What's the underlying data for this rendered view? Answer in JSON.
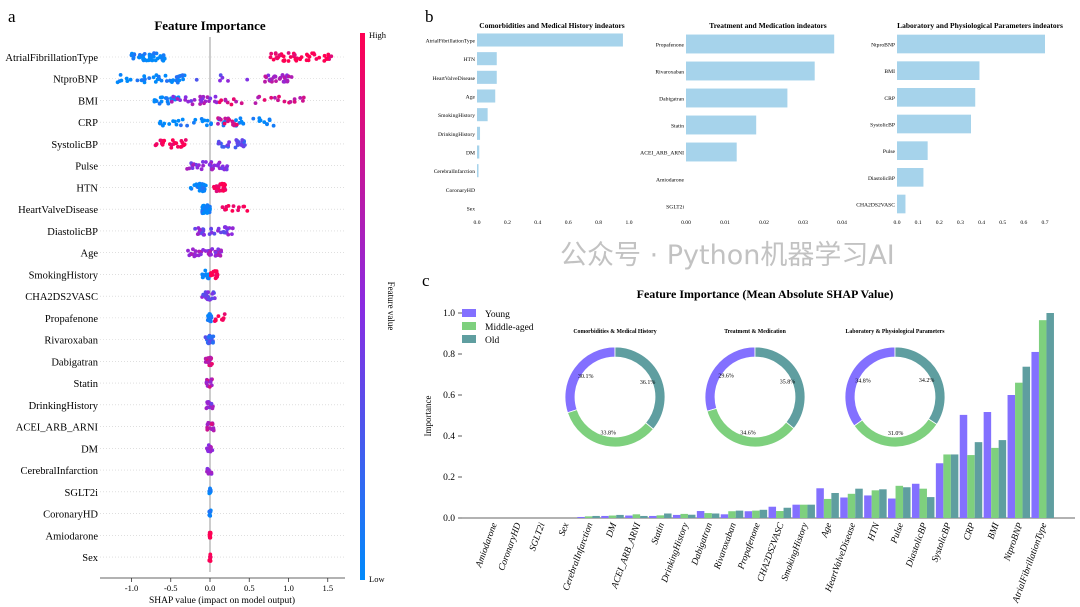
{
  "panel_labels": {
    "a": "a",
    "b": "b",
    "c": "c"
  },
  "watermark": "公众号 · Python机器学习AI",
  "chart_data": [
    {
      "type": "scatter",
      "subtype": "shap-beeswarm",
      "title": "Feature Importance",
      "xlabel": "SHAP value (impact on model output)",
      "xlim": [
        -1.4,
        1.65
      ],
      "xticks": [
        "-1.0",
        "-0.5",
        "0.0",
        "0.5",
        "1.0",
        "1.5"
      ],
      "colorbar": {
        "label": "Feature value",
        "high": "High",
        "low": "Low",
        "low_color": "#008afb",
        "high_color": "#ff0052"
      },
      "features": [
        {
          "name": "AtrialFibrillationType",
          "clusters": [
            [
              -1.0,
              -0.55,
              0,
              45
            ],
            [
              0.75,
              1.55,
              1,
              45
            ]
          ]
        },
        {
          "name": "NtproBNP",
          "clusters": [
            [
              -1.25,
              -0.3,
              0,
              40
            ],
            [
              -0.2,
              0.5,
              0.4,
              6
            ],
            [
              0.7,
              1.05,
              0.6,
              30
            ]
          ]
        },
        {
          "name": "BMI",
          "clusters": [
            [
              -0.75,
              -0.4,
              0,
              20
            ],
            [
              -0.5,
              0.1,
              0.55,
              25
            ],
            [
              0.1,
              1.2,
              0.8,
              25
            ]
          ]
        },
        {
          "name": "CRP",
          "clusters": [
            [
              -0.65,
              0.85,
              0,
              45
            ],
            [
              0.1,
              0.35,
              0.8,
              15
            ]
          ]
        },
        {
          "name": "SystolicBP",
          "clusters": [
            [
              -0.7,
              -0.3,
              1,
              25
            ],
            [
              0.1,
              0.45,
              0.3,
              30
            ]
          ]
        },
        {
          "name": "Pulse",
          "clusters": [
            [
              -0.3,
              0.3,
              0.5,
              35
            ]
          ]
        },
        {
          "name": "HTN",
          "clusters": [
            [
              -0.25,
              -0.05,
              0,
              25
            ],
            [
              0.05,
              0.2,
              1,
              25
            ]
          ]
        },
        {
          "name": "HeartValveDisease",
          "clusters": [
            [
              -0.1,
              0,
              0,
              35
            ],
            [
              0.15,
              0.5,
              1,
              12
            ]
          ]
        },
        {
          "name": "DiastolicBP",
          "clusters": [
            [
              -0.25,
              0.3,
              0.45,
              35
            ]
          ]
        },
        {
          "name": "Age",
          "clusters": [
            [
              -0.28,
              0.15,
              0.55,
              40
            ]
          ]
        },
        {
          "name": "SmokingHistory",
          "clusters": [
            [
              -0.1,
              0,
              0,
              15
            ],
            [
              0,
              0.1,
              1,
              15
            ]
          ]
        },
        {
          "name": "CHA2DS2VASC",
          "clusters": [
            [
              -0.12,
              0.08,
              0.4,
              20
            ]
          ]
        },
        {
          "name": "Propafenone",
          "clusters": [
            [
              -0.03,
              0.02,
              0,
              15
            ],
            [
              0.05,
              0.2,
              1,
              10
            ]
          ]
        },
        {
          "name": "Rivaroxaban",
          "clusters": [
            [
              -0.06,
              0.05,
              0.2,
              20
            ]
          ]
        },
        {
          "name": "Dabigatran",
          "clusters": [
            [
              -0.07,
              0.03,
              0.8,
              20
            ]
          ]
        },
        {
          "name": "Statin",
          "clusters": [
            [
              -0.05,
              0.03,
              0.7,
              15
            ]
          ]
        },
        {
          "name": "DrinkingHistory",
          "clusters": [
            [
              -0.05,
              0.05,
              0.5,
              15
            ]
          ]
        },
        {
          "name": "ACEI_ARB_ARNI",
          "clusters": [
            [
              -0.05,
              0.05,
              0.7,
              15
            ]
          ]
        },
        {
          "name": "DM",
          "clusters": [
            [
              -0.04,
              0.04,
              0.6,
              12
            ]
          ]
        },
        {
          "name": "CerebralInfarction",
          "clusters": [
            [
              -0.04,
              0.04,
              0.6,
              10
            ]
          ]
        },
        {
          "name": "SGLT2i",
          "clusters": [
            [
              -0.01,
              0.01,
              0,
              10
            ]
          ]
        },
        {
          "name": "CoronaryHD",
          "clusters": [
            [
              -0.01,
              0.01,
              0,
              10
            ]
          ]
        },
        {
          "name": "Amiodarone",
          "clusters": [
            [
              -0.01,
              0.01,
              1,
              10
            ]
          ]
        },
        {
          "name": "Sex",
          "clusters": [
            [
              -0.01,
              0.01,
              1,
              10
            ]
          ]
        }
      ]
    },
    {
      "type": "bar",
      "orientation": "horizontal",
      "color": "#a6d3eb",
      "title": "Comorbidities and Medical History indeators",
      "xlim": [
        0,
        1.0
      ],
      "xticks": [
        "0.0",
        "0.2",
        "0.4",
        "0.6",
        "0.8",
        "1.0"
      ],
      "categories": [
        "AtrialFibrillationType",
        "HTN",
        "HeartValveDisease",
        "Age",
        "SmokingHistory",
        "DrinkingHistory",
        "DM",
        "CerebralInfarction",
        "CoronaryHD",
        "Sex"
      ],
      "values": [
        0.96,
        0.13,
        0.13,
        0.12,
        0.07,
        0.02,
        0.015,
        0.01,
        0,
        0
      ]
    },
    {
      "type": "bar",
      "orientation": "horizontal",
      "color": "#a6d3eb",
      "title": "Treatment and Medication indeators",
      "xlim": [
        0,
        0.04
      ],
      "xticks": [
        "0.00",
        "0.01",
        "0.02",
        "0.03",
        "0.04"
      ],
      "categories": [
        "Propafenone",
        "Rivaroxaban",
        "Dabigatran",
        "Statin",
        "ACEI_ARB_ARNI",
        "Amiodarone",
        "SGLT2i"
      ],
      "values": [
        0.038,
        0.033,
        0.026,
        0.018,
        0.013,
        0,
        0
      ]
    },
    {
      "type": "bar",
      "orientation": "horizontal",
      "color": "#a6d3eb",
      "title": "Laboratory and Physiological Parameters indeators",
      "xlim": [
        0,
        0.7
      ],
      "xticks": [
        "0.0",
        "0.1",
        "0.2",
        "0.3",
        "0.4",
        "0.5",
        "0.6",
        "0.7"
      ],
      "categories": [
        "NtproBNP",
        "BMI",
        "CRP",
        "SystolicBP",
        "Pulse",
        "DiastolicBP",
        "CHA2DS2VASC"
      ],
      "values": [
        0.7,
        0.39,
        0.37,
        0.35,
        0.145,
        0.125,
        0.04
      ]
    },
    {
      "type": "bar",
      "orientation": "vertical",
      "title": "Feature Importance (Mean Absolute SHAP Value)",
      "ylabel": "Importance",
      "ylim": [
        0,
        1.0
      ],
      "yticks": [
        "0.0",
        "0.2",
        "0.4",
        "0.6",
        "0.8",
        "1.0"
      ],
      "legend": "top-left",
      "categories": [
        "Amiodarone",
        "CoronaryHD",
        "SGLT2i",
        "Sex",
        "CerebralInfarction",
        "DM",
        "ACEI_ARB_ARNI",
        "Statin",
        "DrinkingHistory",
        "Dabigatran",
        "Rivaroxaban",
        "Propafenone",
        "CHA2DS2VASC",
        "SmokingHistory",
        "Age",
        "HeartValveDisease",
        "HTN",
        "Pulse",
        "DiastolicBP",
        "SystolicBP",
        "CRP",
        "BMI",
        "NtproBNP",
        "AtrialFibrillationType"
      ],
      "series": [
        {
          "name": "Young",
          "color": "#8370ff",
          "values": [
            0,
            0,
            0,
            0,
            0.005,
            0.01,
            0.012,
            0.01,
            0.015,
            0.034,
            0.018,
            0.033,
            0.055,
            0.065,
            0.145,
            0.1,
            0.11,
            0.095,
            0.167,
            0.267,
            0.503,
            0.517,
            0.6,
            0.81
          ]
        },
        {
          "name": "Middle-aged",
          "color": "#7ed07e",
          "values": [
            0,
            0,
            0,
            0,
            0.008,
            0.012,
            0.018,
            0.013,
            0.02,
            0.024,
            0.033,
            0.036,
            0.034,
            0.065,
            0.093,
            0.118,
            0.135,
            0.157,
            0.143,
            0.31,
            0.307,
            0.342,
            0.66,
            0.965
          ]
        },
        {
          "name": "Old",
          "color": "#5f9ea0",
          "values": [
            0,
            0,
            0,
            0,
            0.01,
            0.015,
            0.01,
            0.022,
            0.016,
            0.022,
            0.036,
            0.04,
            0.05,
            0.065,
            0.122,
            0.143,
            0.14,
            0.15,
            0.102,
            0.31,
            0.37,
            0.38,
            0.738,
            1.0
          ]
        }
      ],
      "pies": [
        {
          "title": "Comorbidities & Medical History",
          "labels": [
            "30.1%",
            "33.8%",
            "36.1%"
          ],
          "values": [
            30.1,
            33.8,
            36.1
          ]
        },
        {
          "title": "Treatment & Medication",
          "labels": [
            "29.6%",
            "34.6%",
            "35.8%"
          ],
          "values": [
            29.6,
            34.6,
            35.8
          ]
        },
        {
          "title": "Laboratory & Physiological Parameters",
          "labels": [
            "34.8%",
            "31.0%",
            "34.2%"
          ],
          "values": [
            34.8,
            31.0,
            34.2
          ]
        }
      ]
    }
  ]
}
